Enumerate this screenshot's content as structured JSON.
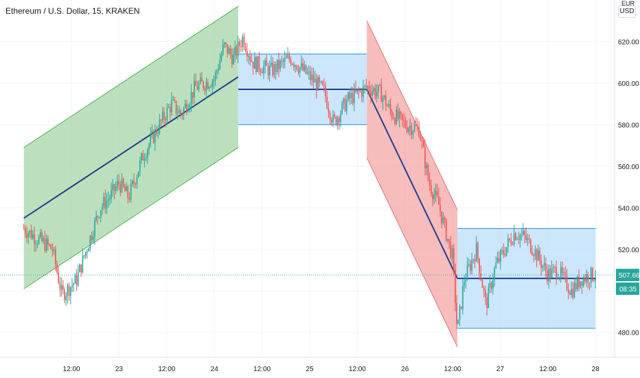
{
  "header": {
    "title": "Ethereum / U.S. Dollar, 15, KRAKEN",
    "currency_label": "USD",
    "currency_top_label": "EUR"
  },
  "chart_data": {
    "type": "candlestick",
    "title": "Ethereum / U.S. Dollar, 15, KRAKEN",
    "ylim": [
      468,
      640
    ],
    "y_ticks": [
      480,
      500,
      520,
      540,
      560,
      580,
      600,
      620
    ],
    "y_tick_labels": [
      "480.00",
      "500.00",
      "520.00",
      "540.00",
      "560.00",
      "580.00",
      "600.00",
      "620.00"
    ],
    "x_ticks": [
      {
        "label": "12:00",
        "t": 0.5
      },
      {
        "label": "23",
        "t": 1.0
      },
      {
        "label": "12:00",
        "t": 1.5
      },
      {
        "label": "24",
        "t": 2.0
      },
      {
        "label": "12:00",
        "t": 2.5
      },
      {
        "label": "25",
        "t": 3.0
      },
      {
        "label": "12:00",
        "t": 3.5
      },
      {
        "label": "26",
        "t": 4.0
      },
      {
        "label": "12:00",
        "t": 4.5
      },
      {
        "label": "27",
        "t": 5.0
      },
      {
        "label": "12:00",
        "t": 5.5
      },
      {
        "label": "28",
        "t": 6.0
      }
    ],
    "last_price": 507.66,
    "last_price_label": "507.66",
    "countdown_label": "08:35",
    "price_path": [
      [
        0.0,
        530
      ],
      [
        0.15,
        525
      ],
      [
        0.3,
        520
      ],
      [
        0.4,
        498
      ],
      [
        0.55,
        505
      ],
      [
        0.8,
        540
      ],
      [
        0.9,
        545
      ],
      [
        1.0,
        552
      ],
      [
        1.1,
        545
      ],
      [
        1.25,
        565
      ],
      [
        1.4,
        578
      ],
      [
        1.55,
        590
      ],
      [
        1.65,
        585
      ],
      [
        1.8,
        598
      ],
      [
        2.0,
        602
      ],
      [
        2.1,
        618
      ],
      [
        2.2,
        612
      ],
      [
        2.3,
        622
      ],
      [
        2.4,
        610
      ],
      [
        2.6,
        606
      ],
      [
        2.8,
        612
      ],
      [
        3.0,
        603
      ],
      [
        3.15,
        596
      ],
      [
        3.25,
        581
      ],
      [
        3.4,
        592
      ],
      [
        3.6,
        598
      ],
      [
        3.75,
        595
      ],
      [
        3.85,
        586
      ],
      [
        4.0,
        580
      ],
      [
        4.15,
        578
      ],
      [
        4.25,
        552
      ],
      [
        4.35,
        542
      ],
      [
        4.5,
        516
      ],
      [
        4.55,
        480
      ],
      [
        4.62,
        505
      ],
      [
        4.75,
        520
      ],
      [
        4.85,
        493
      ],
      [
        4.95,
        512
      ],
      [
        5.05,
        520
      ],
      [
        5.15,
        528
      ],
      [
        5.25,
        526
      ],
      [
        5.35,
        520
      ],
      [
        5.5,
        508
      ],
      [
        5.6,
        510
      ],
      [
        5.75,
        500
      ],
      [
        5.85,
        506
      ],
      [
        6.0,
        508
      ]
    ],
    "channels": [
      {
        "type": "ascending",
        "fill": "#a5d6a7",
        "stroke": "#4caf50",
        "t0": 0.0,
        "t1": 2.25,
        "mid0": 535,
        "mid1": 603,
        "half_width": 34
      },
      {
        "type": "sideways",
        "fill": "#bbdefb",
        "stroke": "#2196f3",
        "t0": 2.25,
        "t1": 3.6,
        "mid0": 597,
        "mid1": 597,
        "half_width": 17
      },
      {
        "type": "descending",
        "fill": "#f4a6a6",
        "stroke": "#e57373",
        "t0": 3.6,
        "t1": 4.55,
        "mid0": 597,
        "mid1": 506,
        "half_width": 33
      },
      {
        "type": "sideways",
        "fill": "#bbdefb",
        "stroke": "#2196f3",
        "t0": 4.55,
        "t1": 6.0,
        "mid0": 506,
        "mid1": 506,
        "half_width": 24
      }
    ],
    "colors": {
      "up": "#26a69a",
      "down": "#ef5350",
      "trendline": "#1f3f8f",
      "price_line": "#26a69a",
      "grid": "#f0f3fa"
    }
  }
}
